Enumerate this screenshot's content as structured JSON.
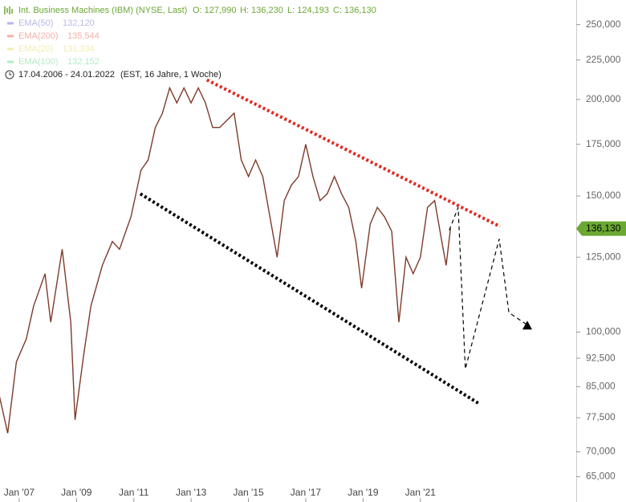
{
  "chart_data": {
    "type": "line",
    "title": "Int. Business Machines (IBM) (NYSE, Last)",
    "quote": [
      "O: 127,990",
      "H: 136,230",
      "L: 124,193",
      "C: 136,130"
    ],
    "indicators": [
      {
        "name": "EMA(50)",
        "value": "132,120",
        "color": "#b7b9e8"
      },
      {
        "name": "EMA(200)",
        "value": "135,544",
        "color": "#f4b0a8"
      },
      {
        "name": "EMA(20)",
        "value": "131,334",
        "color": "#f3ecb0"
      },
      {
        "name": "EMA(100)",
        "value": "132,152",
        "color": "#b3ebc6"
      }
    ],
    "period": "17.04.2006 - 24.01.2022",
    "period_note": "(EST, 16 Jahre, 1 Woche)",
    "log_scale": true,
    "xlim": [
      2006.33,
      2026.44
    ],
    "ylim": [
      64,
      269
    ],
    "xticks": [
      {
        "value": 2007,
        "label": "Jan '07"
      },
      {
        "value": 2009,
        "label": "Jan '09"
      },
      {
        "value": 2011,
        "label": "Jan '11"
      },
      {
        "value": 2013,
        "label": "Jan '13"
      },
      {
        "value": 2015,
        "label": "Jan '15"
      },
      {
        "value": 2017,
        "label": "Jan '17"
      },
      {
        "value": 2019,
        "label": "Jan '19"
      },
      {
        "value": 2021,
        "label": "Jan '21"
      }
    ],
    "yticks": [
      {
        "value": 250,
        "label": "250,000"
      },
      {
        "value": 225,
        "label": "225,000"
      },
      {
        "value": 200,
        "label": "200,000"
      },
      {
        "value": 175,
        "label": "175,000"
      },
      {
        "value": 150,
        "label": "150,000"
      },
      {
        "value": 125,
        "label": "125,000"
      },
      {
        "value": 100,
        "label": "100,000"
      },
      {
        "value": 92.5,
        "label": "92,500"
      },
      {
        "value": 85,
        "label": "85,000"
      },
      {
        "value": 77.5,
        "label": "77,500"
      },
      {
        "value": 70,
        "label": "70,000"
      },
      {
        "value": 65,
        "label": "65,000"
      }
    ],
    "series": [
      {
        "color": "#7d3a2a",
        "x": [
          2006.3,
          2006.6,
          2006.9,
          2007.25,
          2007.5,
          2007.9,
          2008.1,
          2008.5,
          2008.8,
          2008.95,
          2009.25,
          2009.5,
          2009.9,
          2010.25,
          2010.5,
          2010.9,
          2011.25,
          2011.5,
          2011.75,
          2012.0,
          2012.25,
          2012.5,
          2012.75,
          2013.0,
          2013.25,
          2013.5,
          2013.75,
          2014.0,
          2014.25,
          2014.5,
          2014.75,
          2015.0,
          2015.25,
          2015.5,
          2015.75,
          2016.0,
          2016.25,
          2016.5,
          2016.75,
          2017.0,
          2017.25,
          2017.5,
          2017.75,
          2018.0,
          2018.25,
          2018.5,
          2018.75,
          2018.95,
          2019.25,
          2019.5,
          2019.75,
          2020.0,
          2020.25,
          2020.5,
          2020.75,
          2021.0,
          2021.25,
          2021.5,
          2021.75,
          2021.9,
          2022.05
        ],
        "values": [
          83,
          74,
          91.5,
          98,
          108,
          119,
          103,
          128,
          103,
          77,
          93.5,
          108,
          122,
          131,
          128,
          141,
          162,
          167,
          184,
          192,
          207,
          198,
          207,
          198,
          207,
          198,
          184,
          184,
          188,
          192,
          167,
          159,
          167,
          159,
          141,
          125,
          148,
          155,
          159,
          175,
          159,
          148,
          151,
          159,
          151,
          145,
          131,
          114,
          138,
          145,
          141,
          135,
          103,
          125,
          119,
          125,
          145,
          148,
          131,
          122,
          136.13
        ]
      }
    ],
    "last_label": {
      "value": 136.13,
      "label": "136,130",
      "color": "#6aa832"
    },
    "trendlines": [
      {
        "color": "#e0281e",
        "style": "dotted",
        "x": [
          2013.55,
          2023.78
        ],
        "values": [
          212,
          137
        ]
      },
      {
        "color": "#000000",
        "style": "dotted",
        "x": [
          2011.23,
          2023.05
        ],
        "values": [
          151,
          80.8
        ]
      },
      {
        "color": "#000000",
        "style": "dashed",
        "x": [
          2022.01,
          2022.32,
          2022.57,
          2023.75,
          2024.09,
          2024.76
        ],
        "values": [
          135.5,
          145,
          89.6,
          132,
          106,
          102
        ]
      }
    ]
  }
}
